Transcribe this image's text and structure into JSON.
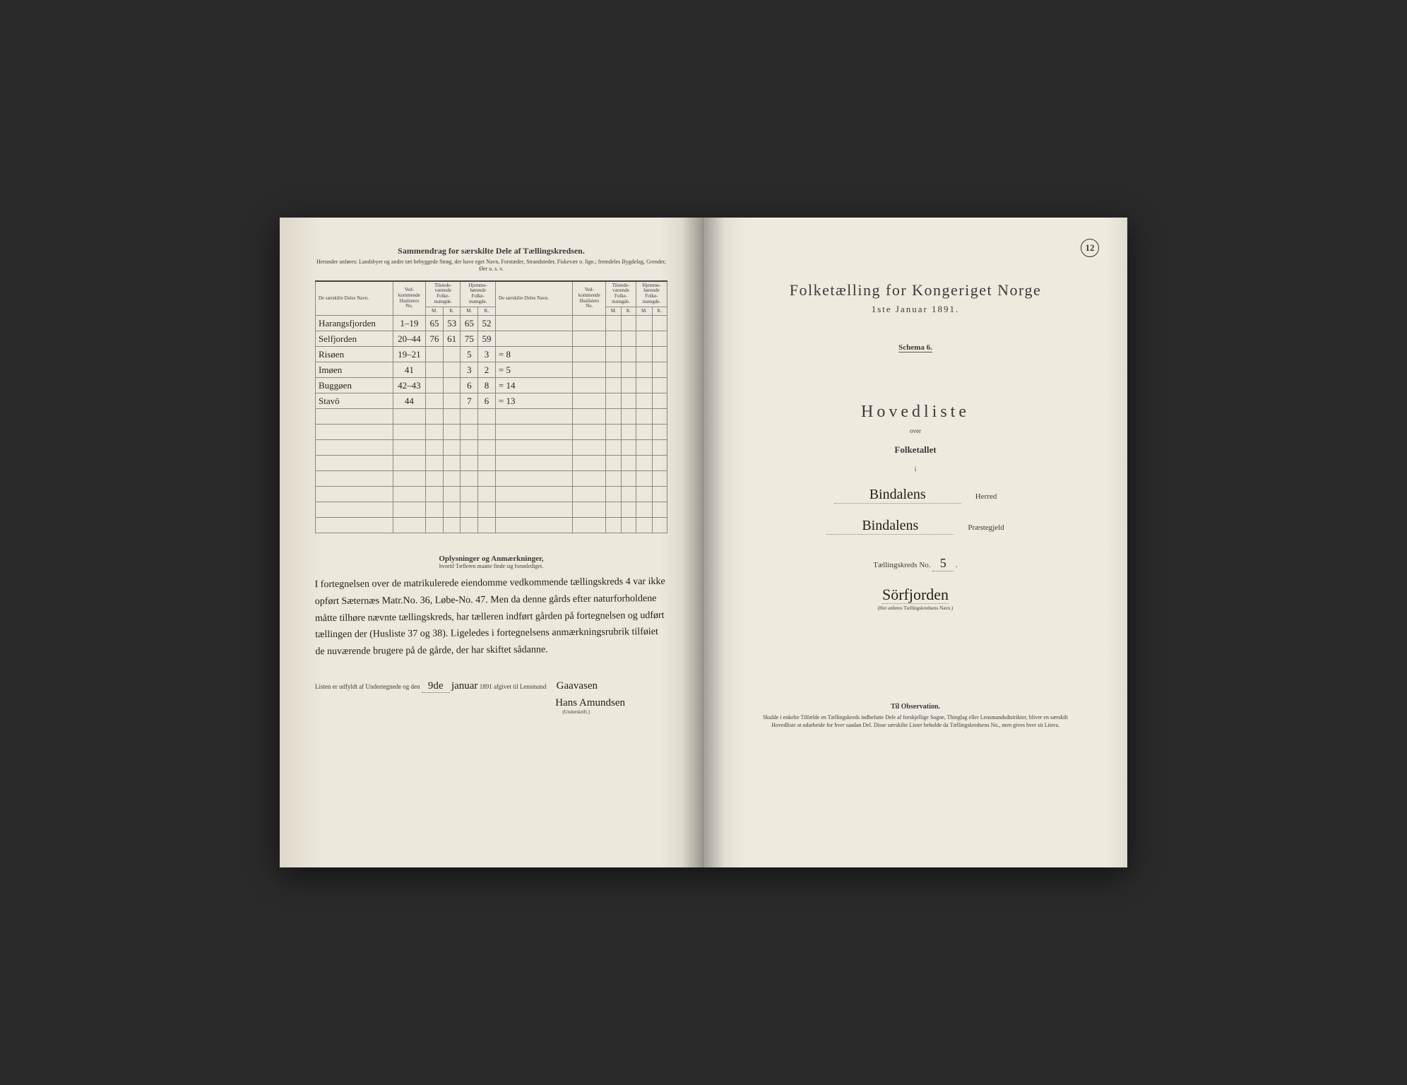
{
  "pageNumber": "12",
  "left": {
    "summaryTitle": "Sammendrag for særskilte Dele af Tællingskredsen.",
    "summarySub": "Herunder anføres: Landsbyer og andre tæt bebyggede Strøg, der have eget Navn, Forstæder, Strandsteder, Fiskevær o. lign.; fremdeles Bygdelag, Grender, Øer o. s. v.",
    "headers": {
      "name": "De særskilte Deles Navn.",
      "huslist": "Ved-kommende Huslisters No.",
      "tilstede": "Tilstede-værende Folke-mængde.",
      "hjemme": "Hjemme-hørende Folke-mængde.",
      "m": "M.",
      "k": "K."
    },
    "rows": [
      {
        "name": "Harangsfjorden",
        "hus": "1–19",
        "tm": "65",
        "tk": "53",
        "hm": "65",
        "hk": "52",
        "sum": ""
      },
      {
        "name": "Selfjorden",
        "hus": "20–44",
        "tm": "76",
        "tk": "61",
        "hm": "75",
        "hk": "59",
        "sum": ""
      },
      {
        "name": "Risøen",
        "hus": "19–21",
        "tm": "",
        "tk": "",
        "hm": "5",
        "hk": "3",
        "sum": "= 8"
      },
      {
        "name": "Imøen",
        "hus": "41",
        "tm": "",
        "tk": "",
        "hm": "3",
        "hk": "2",
        "sum": "= 5"
      },
      {
        "name": "Buggøen",
        "hus": "42–43",
        "tm": "",
        "tk": "",
        "hm": "6",
        "hk": "8",
        "sum": "= 14"
      },
      {
        "name": "Stavö",
        "hus": "44",
        "tm": "",
        "tk": "",
        "hm": "7",
        "hk": "6",
        "sum": "= 13"
      }
    ],
    "notesTitle": "Oplysninger og Anmærkninger,",
    "notesSub": "hvortil Tælleren maatte finde sig foranlediget.",
    "notesBody": "I fortegnelsen over de matrikulerede eiendomme vedkommende tællingskreds 4 var ikke opført Sæternæs Matr.No. 36, Løbe-No. 47. Men da denne gårds efter naturforholdene måtte tilhøre nævnte tællingskreds, har tælleren indført gården på fortegnelsen og udført tællingen der (Husliste 37 og 38). Ligeledes i fortegnelsens anmærkningsrubrik tilføiet de nuværende brugere på de gårde, der har skiftet sådanne.",
    "sigPrefix": "Listen er udfyldt af Undertegnede og den",
    "sigDay": "9de",
    "sigMonth": "januar",
    "sigYear": "1891 afgivet til Lensmand",
    "sigName1": "Gaavasen",
    "sigName2": "Hans Amundsen",
    "sigCaption": "(Underskrift.)"
  },
  "right": {
    "title": "Folketælling for Kongeriget Norge",
    "date": "1ste Januar 1891.",
    "schema": "Schema 6.",
    "hovedliste": "Hovedliste",
    "over": "over",
    "folketallet": "Folketallet",
    "i": "i",
    "herred": "Bindalens",
    "herredLabel": "Herred",
    "praeste": "Bindalens",
    "praesteLabel": "Præstegjeld",
    "kredsLabel": "Tællingskreds No.",
    "kredsNo": "5",
    "kredsName": "Sörfjorden",
    "kredsCaption": "(Her anføres Tællingskredsens Navn.)",
    "obsTitle": "Til Observation.",
    "obsText": "Skulde i enkelte Tilfælde en Tællingskreds indbefatte Dele af forskjellige Sogne, Thinglag eller Lensmandsdistrikter, bliver en særskilt Hovedliste at udarbeide for hver saadan Del. Disse særskilte Lister beholde da Tællingskredsens No., men gives hver sit Litera."
  }
}
